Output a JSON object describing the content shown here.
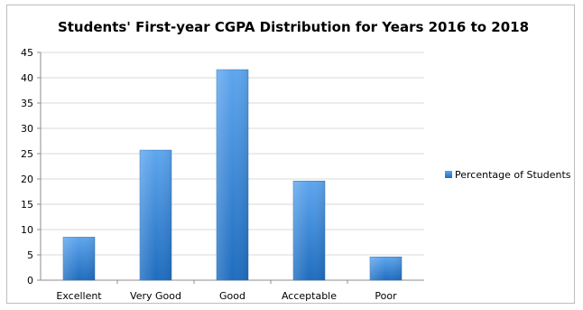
{
  "chart_data": {
    "type": "bar",
    "title": "Students' First-year CGPA Distribution for Years 2016 to 2018",
    "categories": [
      "Excellent",
      "Very Good",
      "Good",
      "Acceptable",
      "Poor"
    ],
    "series": [
      {
        "name": "Percentage of Students",
        "values": [
          8.5,
          25.7,
          41.6,
          19.6,
          4.6
        ],
        "color": "#3b8ee0"
      }
    ],
    "ylim": [
      0,
      45
    ],
    "yticks": [
      "0",
      "5",
      "10",
      "15",
      "20",
      "25",
      "30",
      "35",
      "40",
      "45"
    ],
    "grid": true,
    "legend_position": "right"
  }
}
